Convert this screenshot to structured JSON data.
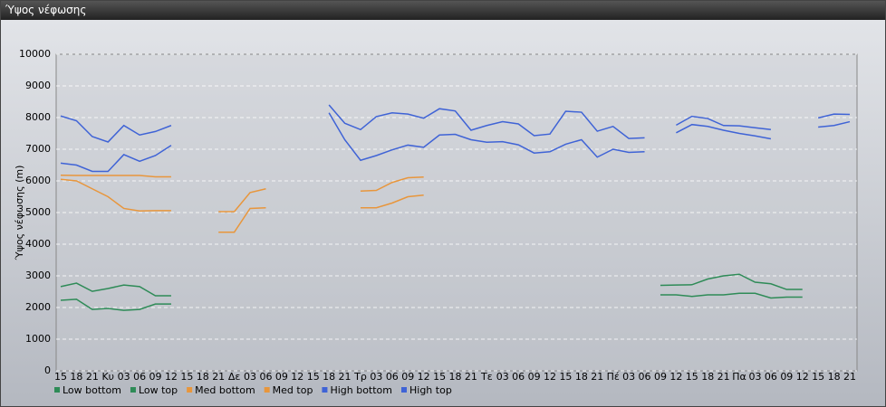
{
  "chart_data": {
    "type": "line",
    "title": "Ύψος νέφωσης",
    "y_label": "Ύψος νέφωσης (m)",
    "categories": [
      "15",
      "18",
      "21",
      "Κυ",
      "03",
      "06",
      "09",
      "12",
      "15",
      "18",
      "21",
      "Δε",
      "03",
      "06",
      "09",
      "12",
      "15",
      "18",
      "21",
      "Τρ",
      "03",
      "06",
      "09",
      "12",
      "15",
      "18",
      "21",
      "Τε",
      "03",
      "06",
      "09",
      "12",
      "15",
      "18",
      "21",
      "Πέ",
      "03",
      "06",
      "09",
      "12",
      "15",
      "18",
      "21",
      "Πα",
      "03",
      "06",
      "09",
      "12",
      "15",
      "18",
      "21"
    ],
    "ylim": [
      0,
      10000
    ],
    "yticks": [
      0,
      1000,
      2000,
      3000,
      4000,
      5000,
      6000,
      7000,
      8000,
      9000,
      10000
    ],
    "grid": true,
    "series": [
      {
        "name": "Low bottom",
        "color": "#2e8b57",
        "values": [
          2230,
          2260,
          1940,
          1970,
          1910,
          1940,
          2110,
          2110,
          null,
          null,
          null,
          null,
          null,
          null,
          null,
          null,
          null,
          null,
          null,
          null,
          null,
          null,
          null,
          null,
          null,
          null,
          null,
          null,
          null,
          null,
          null,
          null,
          null,
          null,
          null,
          null,
          null,
          null,
          2400,
          2400,
          2350,
          2400,
          2400,
          2450,
          2450,
          2300,
          2330,
          2330,
          null,
          null,
          null
        ]
      },
      {
        "name": "Low top",
        "color": "#2e8b57",
        "values": [
          2660,
          2770,
          2510,
          2600,
          2710,
          2660,
          2370,
          2370,
          null,
          null,
          null,
          null,
          null,
          null,
          null,
          null,
          null,
          null,
          null,
          null,
          null,
          null,
          null,
          null,
          null,
          null,
          null,
          null,
          null,
          null,
          null,
          null,
          null,
          null,
          null,
          null,
          null,
          null,
          2700,
          2710,
          2720,
          2900,
          3000,
          3050,
          2800,
          2750,
          2570,
          2570,
          null,
          null,
          null
        ]
      },
      {
        "name": "Med bottom",
        "color": "#e8963c",
        "values": [
          6050,
          6000,
          5750,
          5500,
          5130,
          5050,
          5060,
          5060,
          null,
          null,
          4380,
          4380,
          5130,
          5150,
          null,
          null,
          null,
          null,
          null,
          5150,
          5150,
          5300,
          5500,
          5550,
          null,
          null,
          null,
          null,
          null,
          null,
          null,
          null,
          null,
          null,
          null,
          null,
          null,
          null,
          null,
          null,
          null,
          null,
          null,
          null,
          null,
          null,
          null,
          null,
          null,
          null,
          null
        ]
      },
      {
        "name": "Med top",
        "color": "#e8963c",
        "values": [
          6180,
          6170,
          6170,
          6170,
          6170,
          6170,
          6130,
          6130,
          null,
          null,
          5030,
          5030,
          5630,
          5750,
          null,
          null,
          null,
          null,
          null,
          5680,
          5700,
          5950,
          6100,
          6120,
          null,
          null,
          null,
          null,
          null,
          null,
          null,
          null,
          null,
          null,
          null,
          null,
          null,
          null,
          null,
          null,
          null,
          null,
          null,
          null,
          null,
          null,
          null,
          null,
          null,
          null,
          null
        ]
      },
      {
        "name": "High bottom",
        "color": "#3f63d6",
        "values": [
          6560,
          6500,
          6300,
          6300,
          6830,
          6620,
          6800,
          7120,
          null,
          null,
          null,
          null,
          null,
          null,
          null,
          null,
          null,
          8150,
          7300,
          6650,
          6800,
          6980,
          7130,
          7060,
          7450,
          7470,
          7300,
          7220,
          7240,
          7140,
          6880,
          6920,
          7160,
          7300,
          6750,
          7000,
          6900,
          6920,
          null,
          7520,
          7780,
          7720,
          7600,
          7500,
          7420,
          7330,
          null,
          null,
          7700,
          7750,
          7870
        ]
      },
      {
        "name": "High top",
        "color": "#3f63d6",
        "values": [
          8050,
          7900,
          7400,
          7230,
          7750,
          7450,
          7560,
          7750,
          null,
          null,
          null,
          null,
          null,
          null,
          null,
          null,
          null,
          8400,
          7820,
          7620,
          8030,
          8150,
          8110,
          7980,
          8280,
          8210,
          7600,
          7750,
          7870,
          7800,
          7430,
          7480,
          8200,
          8170,
          7570,
          7720,
          7340,
          7360,
          null,
          7760,
          8040,
          7970,
          7750,
          7740,
          7680,
          7620,
          null,
          null,
          7990,
          8110,
          8100
        ]
      }
    ]
  }
}
